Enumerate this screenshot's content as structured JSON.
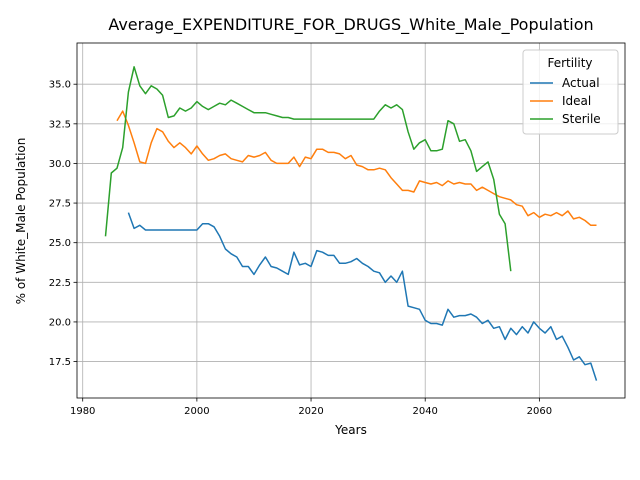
{
  "chart_data": {
    "type": "line",
    "title": "Average_EXPENDITURE_FOR_DRUGS_White_Male_Population",
    "xlabel": "Years",
    "ylabel": "% of White_Male Population",
    "xlim": [
      1979,
      2075
    ],
    "ylim": [
      15.2,
      37.6
    ],
    "xticks": [
      1980,
      2000,
      2020,
      2040,
      2060
    ],
    "yticks": [
      17.5,
      20.0,
      22.5,
      25.0,
      27.5,
      30.0,
      32.5,
      35.0
    ],
    "ytick_labels": [
      "17.5",
      "20.0",
      "22.5",
      "25.0",
      "27.5",
      "30.0",
      "32.5",
      "35.0"
    ],
    "grid": true,
    "legend": {
      "title": "Fertility",
      "position": "top-right"
    },
    "series": [
      {
        "name": "Actual",
        "color": "#1f77b4",
        "x": [
          1988,
          1989,
          1990,
          1991,
          1992,
          1993,
          1994,
          1995,
          1996,
          1997,
          1998,
          1999,
          2000,
          2001,
          2002,
          2003,
          2004,
          2005,
          2006,
          2007,
          2008,
          2009,
          2010,
          2011,
          2012,
          2013,
          2014,
          2015,
          2016,
          2017,
          2018,
          2019,
          2020,
          2021,
          2022,
          2023,
          2024,
          2025,
          2026,
          2027,
          2028,
          2029,
          2030,
          2031,
          2032,
          2033,
          2034,
          2035,
          2036,
          2037,
          2038,
          2039,
          2040,
          2041,
          2042,
          2043,
          2044,
          2045,
          2046,
          2047,
          2048,
          2049,
          2050,
          2051,
          2052,
          2053,
          2054,
          2055,
          2056,
          2057,
          2058,
          2059,
          2060,
          2061,
          2062,
          2063,
          2064,
          2065,
          2066,
          2067,
          2068,
          2069,
          2070
        ],
        "y": [
          26.9,
          25.9,
          26.1,
          25.8,
          25.8,
          25.8,
          25.8,
          25.8,
          25.8,
          25.8,
          25.8,
          25.8,
          25.8,
          26.2,
          26.2,
          26.0,
          25.4,
          24.6,
          24.3,
          24.1,
          23.5,
          23.5,
          23.0,
          23.6,
          24.1,
          23.5,
          23.4,
          23.2,
          23.0,
          24.4,
          23.6,
          23.7,
          23.5,
          24.5,
          24.4,
          24.2,
          24.2,
          23.7,
          23.7,
          23.8,
          24.0,
          23.7,
          23.5,
          23.2,
          23.1,
          22.5,
          22.9,
          22.5,
          23.2,
          21.0,
          20.9,
          20.8,
          20.1,
          19.9,
          19.9,
          19.8,
          20.8,
          20.3,
          20.4,
          20.4,
          20.5,
          20.3,
          19.9,
          20.1,
          19.6,
          19.7,
          18.9,
          19.6,
          19.2,
          19.7,
          19.3,
          20.0,
          19.6,
          19.3,
          19.7,
          18.9,
          19.1,
          18.4,
          17.6,
          17.8,
          17.3,
          17.4,
          16.3
        ]
      },
      {
        "name": "Ideal",
        "color": "#ff7f0e",
        "x": [
          1986,
          1987,
          1988,
          1989,
          1990,
          1991,
          1992,
          1993,
          1994,
          1995,
          1996,
          1997,
          1998,
          1999,
          2000,
          2001,
          2002,
          2003,
          2004,
          2005,
          2006,
          2007,
          2008,
          2009,
          2010,
          2011,
          2012,
          2013,
          2014,
          2015,
          2016,
          2017,
          2018,
          2019,
          2020,
          2021,
          2022,
          2023,
          2024,
          2025,
          2026,
          2027,
          2028,
          2029,
          2030,
          2031,
          2032,
          2033,
          2034,
          2035,
          2036,
          2037,
          2038,
          2039,
          2040,
          2041,
          2042,
          2043,
          2044,
          2045,
          2046,
          2047,
          2048,
          2049,
          2050,
          2051,
          2052,
          2053,
          2054,
          2055,
          2056,
          2057,
          2058,
          2059,
          2060,
          2061,
          2062,
          2063,
          2064,
          2065,
          2066,
          2067,
          2068,
          2069,
          2070
        ],
        "y": [
          32.7,
          33.3,
          32.4,
          31.3,
          30.1,
          30.0,
          31.3,
          32.2,
          32.0,
          31.4,
          31.0,
          31.3,
          31.0,
          30.6,
          31.1,
          30.6,
          30.2,
          30.3,
          30.5,
          30.6,
          30.3,
          30.2,
          30.1,
          30.5,
          30.4,
          30.5,
          30.7,
          30.2,
          30.0,
          30.0,
          30.0,
          30.4,
          29.8,
          30.4,
          30.3,
          30.9,
          30.9,
          30.7,
          30.7,
          30.6,
          30.3,
          30.5,
          29.9,
          29.8,
          29.6,
          29.6,
          29.7,
          29.6,
          29.1,
          28.7,
          28.3,
          28.3,
          28.2,
          28.9,
          28.8,
          28.7,
          28.8,
          28.6,
          28.9,
          28.7,
          28.8,
          28.7,
          28.7,
          28.3,
          28.5,
          28.3,
          28.1,
          27.9,
          27.8,
          27.7,
          27.4,
          27.3,
          26.7,
          26.9,
          26.6,
          26.8,
          26.7,
          26.9,
          26.7,
          27.0,
          26.5,
          26.6,
          26.4,
          26.1,
          26.1
        ]
      },
      {
        "name": "Sterile",
        "color": "#2ca02c",
        "x": [
          1984,
          1985,
          1986,
          1987,
          1988,
          1989,
          1990,
          1991,
          1992,
          1993,
          1994,
          1995,
          1996,
          1997,
          1998,
          1999,
          2000,
          2001,
          2002,
          2003,
          2004,
          2005,
          2006,
          2007,
          2008,
          2009,
          2010,
          2011,
          2012,
          2013,
          2014,
          2015,
          2016,
          2017,
          2018,
          2019,
          2020,
          2021,
          2022,
          2023,
          2024,
          2025,
          2026,
          2027,
          2028,
          2029,
          2030,
          2031,
          2032,
          2033,
          2034,
          2035,
          2036,
          2037,
          2038,
          2039,
          2040,
          2041,
          2042,
          2043,
          2044,
          2045,
          2046,
          2047,
          2048,
          2049,
          2050,
          2051,
          2052,
          2053,
          2054,
          2055
        ],
        "y": [
          25.4,
          29.4,
          29.7,
          31.0,
          34.5,
          36.1,
          34.9,
          34.4,
          34.9,
          34.7,
          34.3,
          32.9,
          33.0,
          33.5,
          33.3,
          33.5,
          33.9,
          33.6,
          33.4,
          33.6,
          33.8,
          33.7,
          34.0,
          33.8,
          33.6,
          33.4,
          33.2,
          33.2,
          33.2,
          33.1,
          33.0,
          32.9,
          32.9,
          32.8,
          32.8,
          32.8,
          32.8,
          32.8,
          32.8,
          32.8,
          32.8,
          32.8,
          32.8,
          32.8,
          32.8,
          32.8,
          32.8,
          32.8,
          33.3,
          33.7,
          33.5,
          33.7,
          33.4,
          32.0,
          30.9,
          31.3,
          31.5,
          30.8,
          30.8,
          30.9,
          32.7,
          32.5,
          31.4,
          31.5,
          30.8,
          29.5,
          29.8,
          30.1,
          29.0,
          26.8,
          26.2,
          23.2
        ]
      }
    ]
  }
}
